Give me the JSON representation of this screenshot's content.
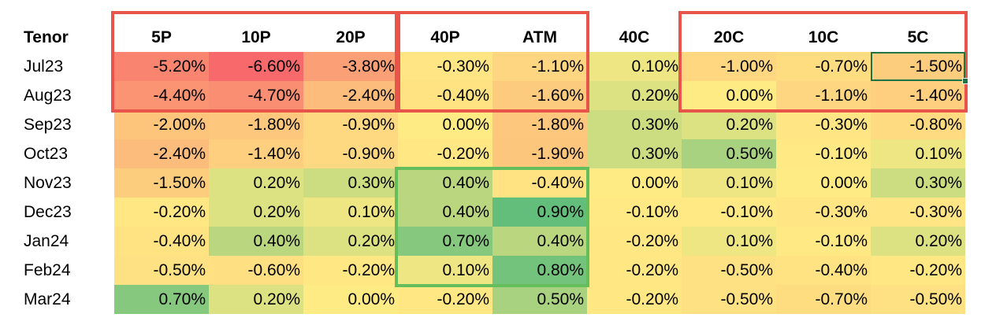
{
  "chart_data": {
    "type": "heatmap",
    "row_header": "Tenor",
    "columns": [
      "5P",
      "10P",
      "20P",
      "40P",
      "ATM",
      "40C",
      "20C",
      "10C",
      "5C"
    ],
    "rows": [
      "Jul23",
      "Aug23",
      "Sep23",
      "Oct23",
      "Nov23",
      "Dec23",
      "Jan24",
      "Feb24",
      "Mar24"
    ],
    "values": [
      [
        -5.2,
        -6.6,
        -3.8,
        -0.3,
        -1.1,
        0.1,
        -1.0,
        -0.7,
        -1.5
      ],
      [
        -4.4,
        -4.7,
        -2.4,
        -0.4,
        -1.6,
        0.2,
        0.0,
        -1.1,
        -1.4
      ],
      [
        -2.0,
        -1.8,
        -0.9,
        0.0,
        -1.8,
        0.3,
        0.2,
        -0.3,
        -0.8
      ],
      [
        -2.4,
        -1.4,
        -0.9,
        -0.2,
        -1.9,
        0.3,
        0.5,
        -0.1,
        0.1
      ],
      [
        -1.5,
        0.2,
        0.3,
        0.4,
        -0.4,
        0.0,
        0.1,
        0.0,
        0.3
      ],
      [
        -0.2,
        0.2,
        0.1,
        0.4,
        0.9,
        -0.1,
        -0.1,
        -0.3,
        -0.3
      ],
      [
        -0.4,
        0.4,
        0.2,
        0.7,
        0.4,
        -0.2,
        0.1,
        -0.1,
        0.2
      ],
      [
        -0.5,
        -0.6,
        -0.2,
        0.1,
        0.8,
        -0.2,
        -0.5,
        -0.4,
        -0.2
      ],
      [
        0.7,
        0.2,
        0.0,
        -0.2,
        0.5,
        -0.2,
        -0.5,
        -0.7,
        -0.5
      ]
    ],
    "labels": [
      [
        "-5.20%",
        "-6.60%",
        "-3.80%",
        "-0.30%",
        "-1.10%",
        "0.10%",
        "-1.00%",
        "-0.70%",
        "-1.50%"
      ],
      [
        "-4.40%",
        "-4.70%",
        "-2.40%",
        "-0.40%",
        "-1.60%",
        "0.20%",
        "0.00%",
        "-1.10%",
        "-1.40%"
      ],
      [
        "-2.00%",
        "-1.80%",
        "-0.90%",
        "0.00%",
        "-1.80%",
        "0.30%",
        "0.20%",
        "-0.30%",
        "-0.80%"
      ],
      [
        "-2.40%",
        "-1.40%",
        "-0.90%",
        "-0.20%",
        "-1.90%",
        "0.30%",
        "0.50%",
        "-0.10%",
        "0.10%"
      ],
      [
        "-1.50%",
        "0.20%",
        "0.30%",
        "0.40%",
        "-0.40%",
        "0.00%",
        "0.10%",
        "0.00%",
        "0.30%"
      ],
      [
        "-0.20%",
        "0.20%",
        "0.10%",
        "0.40%",
        "0.90%",
        "-0.10%",
        "-0.10%",
        "-0.30%",
        "-0.30%"
      ],
      [
        "-0.40%",
        "0.40%",
        "0.20%",
        "0.70%",
        "0.40%",
        "-0.20%",
        "0.10%",
        "-0.10%",
        "0.20%"
      ],
      [
        "-0.50%",
        "-0.60%",
        "-0.20%",
        "0.10%",
        "0.80%",
        "-0.20%",
        "-0.50%",
        "-0.40%",
        "-0.20%"
      ],
      [
        "0.70%",
        "0.20%",
        "0.00%",
        "-0.20%",
        "0.50%",
        "-0.20%",
        "-0.50%",
        "-0.70%",
        "-0.50%"
      ]
    ],
    "color_scale": {
      "low": "#F8696B",
      "mid": "#FFEB84",
      "high": "#63BE7B"
    },
    "highlight_boxes": [
      {
        "color": "red",
        "rows": [
          "Jul23",
          "Aug23"
        ],
        "columns": [
          "5P",
          "10P",
          "20P"
        ]
      },
      {
        "color": "red",
        "rows": [
          "Jul23",
          "Aug23"
        ],
        "columns": [
          "40P",
          "ATM"
        ]
      },
      {
        "color": "red",
        "rows": [
          "Jul23",
          "Aug23"
        ],
        "columns": [
          "20C",
          "10C",
          "5C"
        ]
      },
      {
        "color": "green",
        "rows": [
          "Nov23",
          "Dec23",
          "Jan24",
          "Feb24"
        ],
        "columns": [
          "40P",
          "ATM"
        ]
      }
    ],
    "selected_cell": {
      "row": "Jul23",
      "column": "5C"
    },
    "grid": false,
    "legend": "none"
  }
}
